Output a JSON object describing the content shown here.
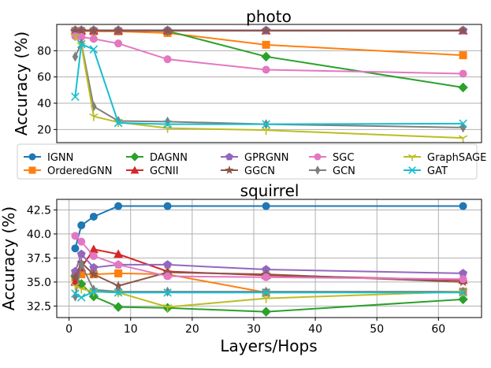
{
  "figure": {
    "xlabel": "Layers/Hops",
    "ylabel": "Accuracy (%)"
  },
  "styles": {
    "IGNN": {
      "color": "#1f77b4",
      "marker": "circle"
    },
    "OrderedGNN": {
      "color": "#ff7f0e",
      "marker": "square"
    },
    "DAGNN": {
      "color": "#2ca02c",
      "marker": "diamond"
    },
    "GCNII": {
      "color": "#d62728",
      "marker": "triangle"
    },
    "GPRGNN": {
      "color": "#9467bd",
      "marker": "pentagon"
    },
    "GGCN": {
      "color": "#8c564b",
      "marker": "star"
    },
    "SGC": {
      "color": "#e377c2",
      "marker": "circle"
    },
    "GCN": {
      "color": "#7f7f7f",
      "marker": "thin_diamond"
    },
    "GraphSAGE": {
      "color": "#bcbd22",
      "marker": "tri_down"
    },
    "GAT": {
      "color": "#17becf",
      "marker": "x"
    }
  },
  "legend": {
    "placement": "between-panels",
    "entries": [
      "IGNN",
      "OrderedGNN",
      "DAGNN",
      "GCNII",
      "GPRGNN",
      "GGCN",
      "SGC",
      "GCN",
      "GraphSAGE",
      "GAT"
    ]
  },
  "chart_data": [
    {
      "type": "line",
      "title": "photo",
      "xlabel": "",
      "ylabel": "Accuracy (%)",
      "xlim": [
        -2,
        67
      ],
      "ylim": [
        10,
        100
      ],
      "x_ticks": [],
      "y_ticks": [
        20,
        40,
        60,
        80
      ],
      "grid": true,
      "series": [
        {
          "name": "IGNN",
          "x": [
            1,
            2,
            4,
            8,
            16,
            32,
            64
          ],
          "values": [
            95.6,
            95.6,
            95.6,
            95.6,
            95.6,
            95.5,
            95.5
          ]
        },
        {
          "name": "OrderedGNN",
          "x": [
            1,
            2,
            4,
            8,
            16,
            32,
            64
          ],
          "values": [
            95.0,
            95.0,
            94.8,
            94.7,
            93.5,
            84.5,
            76.5
          ]
        },
        {
          "name": "DAGNN",
          "x": [
            1,
            2,
            4,
            8,
            16,
            32,
            64
          ],
          "values": [
            95.5,
            95.5,
            95.5,
            95.5,
            95.0,
            75.5,
            52.0
          ]
        },
        {
          "name": "GCNII",
          "x": [
            1,
            2,
            4,
            8,
            16,
            32,
            64
          ],
          "values": [
            95.0,
            95.2,
            95.3,
            95.3,
            95.3,
            95.3,
            95.3
          ]
        },
        {
          "name": "GPRGNN",
          "x": [
            1,
            2,
            4,
            8,
            16,
            32,
            64
          ],
          "values": [
            95.3,
            95.4,
            95.4,
            95.4,
            95.4,
            95.4,
            95.4
          ]
        },
        {
          "name": "GGCN",
          "x": [
            1,
            2,
            4,
            8,
            16,
            32,
            64
          ],
          "values": [
            95.0,
            95.2,
            95.3,
            95.3,
            95.3,
            95.3,
            95.3
          ]
        },
        {
          "name": "SGC",
          "x": [
            1,
            2,
            4,
            8,
            16,
            32,
            64
          ],
          "values": [
            91.0,
            90.5,
            89.0,
            85.5,
            73.5,
            65.5,
            62.5
          ]
        },
        {
          "name": "GCN",
          "x": [
            1,
            2,
            4,
            8,
            16,
            32,
            64
          ],
          "values": [
            75.5,
            85.5,
            37.5,
            26.5,
            26.0,
            24.0,
            21.5
          ]
        },
        {
          "name": "GraphSAGE",
          "x": [
            1,
            2,
            4,
            8,
            16,
            32,
            64
          ],
          "values": [
            91.0,
            84.0,
            30.0,
            25.5,
            21.0,
            19.5,
            13.5
          ]
        },
        {
          "name": "GAT",
          "x": [
            1,
            2,
            4,
            8,
            16,
            32,
            64
          ],
          "values": [
            45.0,
            85.0,
            81.0,
            25.0,
            24.0,
            24.0,
            24.5
          ]
        }
      ]
    },
    {
      "type": "line",
      "title": "squirrel",
      "xlabel": "Layers/Hops",
      "ylabel": "Accuracy (%)",
      "xlim": [
        -2,
        67
      ],
      "ylim": [
        31.3,
        43.6
      ],
      "x_ticks": [
        0,
        10,
        20,
        30,
        40,
        50,
        60
      ],
      "y_ticks": [
        32.5,
        35.0,
        37.5,
        40.0,
        42.5
      ],
      "grid": true,
      "series": [
        {
          "name": "IGNN",
          "x": [
            1,
            2,
            4,
            8,
            16,
            32,
            64
          ],
          "values": [
            38.5,
            40.9,
            41.8,
            42.9,
            42.9,
            42.9,
            42.9
          ]
        },
        {
          "name": "OrderedGNN",
          "x": [
            1,
            2,
            4,
            8,
            16,
            32,
            64
          ],
          "values": [
            35.5,
            35.8,
            35.8,
            35.9,
            35.8,
            33.9,
            34.0
          ]
        },
        {
          "name": "DAGNN",
          "x": [
            1,
            2,
            4,
            8,
            16,
            32,
            64
          ],
          "values": [
            35.6,
            34.8,
            33.5,
            32.4,
            32.3,
            31.9,
            33.2
          ]
        },
        {
          "name": "GCNII",
          "x": [
            1,
            2,
            4,
            8,
            16,
            32,
            64
          ],
          "values": [
            35.0,
            36.5,
            38.4,
            37.9,
            36.1,
            35.7,
            35.2
          ]
        },
        {
          "name": "GPRGNN",
          "x": [
            1,
            2,
            4,
            8,
            16,
            32,
            64
          ],
          "values": [
            36.1,
            37.9,
            36.5,
            36.8,
            36.8,
            36.3,
            35.9
          ]
        },
        {
          "name": "GGCN",
          "x": [
            1,
            2,
            4,
            8,
            16,
            32,
            64
          ],
          "values": [
            35.5,
            37.0,
            35.8,
            34.6,
            36.0,
            35.8,
            35.0
          ]
        },
        {
          "name": "SGC",
          "x": [
            1,
            2,
            4,
            8,
            16,
            32,
            64
          ],
          "values": [
            39.8,
            39.2,
            37.7,
            36.8,
            35.6,
            35.5,
            35.3
          ]
        },
        {
          "name": "GCN",
          "x": [
            1,
            2,
            4,
            8,
            16,
            32,
            64
          ],
          "values": [
            33.5,
            36.8,
            34.2,
            34.0,
            34.0,
            34.0,
            34.0
          ]
        },
        {
          "name": "GraphSAGE",
          "x": [
            1,
            2,
            4,
            8,
            16,
            32,
            64
          ],
          "values": [
            34.6,
            34.3,
            34.0,
            33.9,
            32.4,
            33.3,
            34.0
          ]
        },
        {
          "name": "GAT",
          "x": [
            1,
            2,
            4,
            8,
            16,
            32,
            64
          ],
          "values": [
            33.8,
            33.4,
            34.0,
            33.9,
            33.9,
            33.9,
            33.9
          ]
        }
      ]
    }
  ]
}
